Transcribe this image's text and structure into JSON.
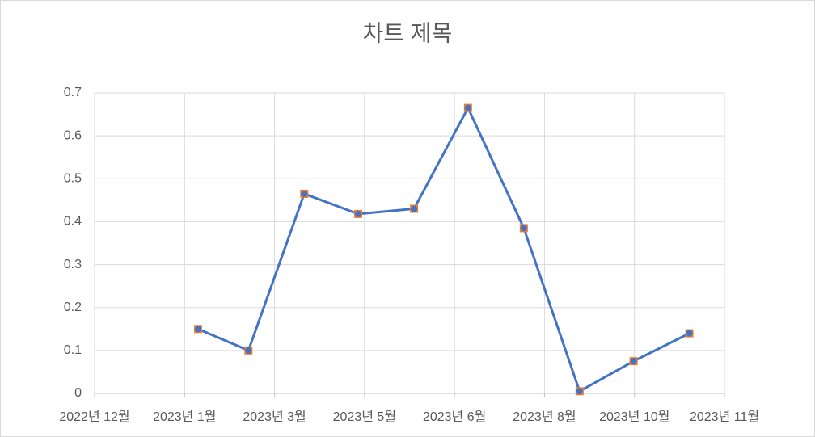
{
  "chart_data": {
    "type": "line",
    "title": "차트 제목",
    "x": [
      1.15,
      1.71,
      2.33,
      2.93,
      3.55,
      4.15,
      4.77,
      5.39,
      5.99,
      6.61
    ],
    "series": [
      {
        "color": "#4472c4",
        "marker_color": "#ed7d31",
        "values": [
          0.15,
          0.1,
          0.465,
          0.418,
          0.43,
          0.665,
          0.385,
          0.005,
          0.075,
          0.14
        ]
      }
    ],
    "xlim": [
      0,
      7
    ],
    "xticks": [
      {
        "value": 0,
        "label": "2022년 12월"
      },
      {
        "value": 1,
        "label": "2023년 1월"
      },
      {
        "value": 2,
        "label": "2023년 3월"
      },
      {
        "value": 3,
        "label": "2023년 5월"
      },
      {
        "value": 4,
        "label": "2023년 6월"
      },
      {
        "value": 5,
        "label": "2023년 8월"
      },
      {
        "value": 6,
        "label": "2023년 10월"
      },
      {
        "value": 7,
        "label": "2023년 11월"
      }
    ],
    "ylim": [
      0,
      0.7
    ],
    "yticks": [
      0,
      0.1,
      0.2,
      0.3,
      0.4,
      0.5,
      0.6,
      0.7
    ],
    "grid": true
  }
}
